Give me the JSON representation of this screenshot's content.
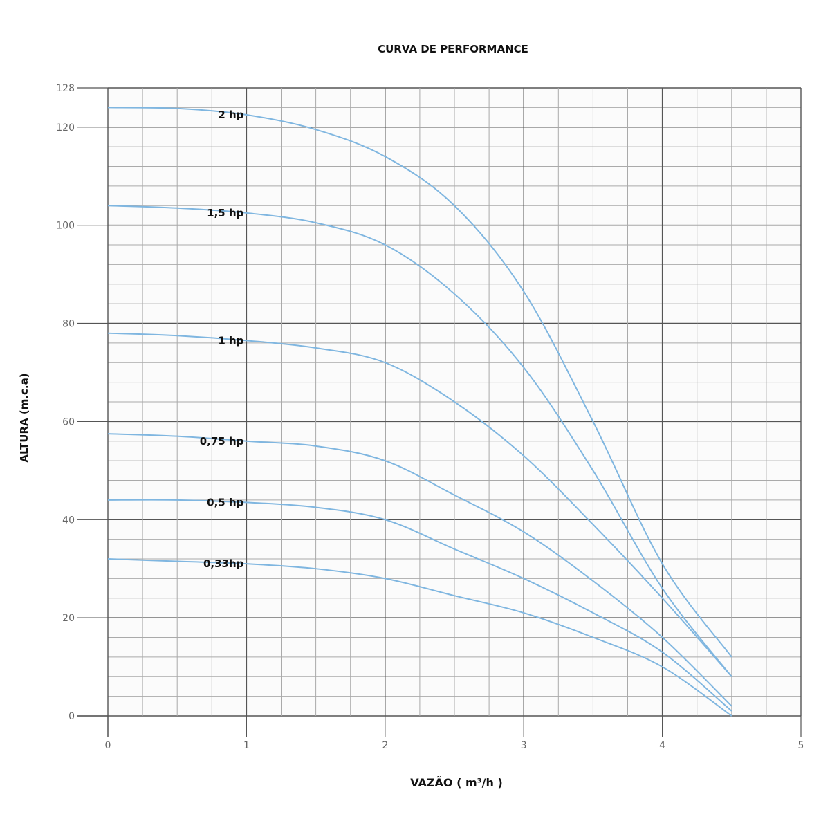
{
  "chart_data": {
    "type": "line",
    "title": "CURVA DE PERFORMANCE",
    "xlabel": "VAZÃO ( m³/h )",
    "ylabel": "ALTURA (m.c.a)",
    "xlim": [
      0,
      5
    ],
    "ylim": [
      0,
      128
    ],
    "xticks": [
      "0",
      "1",
      "2",
      "3",
      "4",
      "5"
    ],
    "yticks": [
      "0",
      "20",
      "40",
      "60",
      "80",
      "100",
      "120",
      "128"
    ],
    "grid": true,
    "line_color": "#7fb6e0",
    "series": [
      {
        "name": "2 hp",
        "x": [
          0,
          0.5,
          1,
          1.5,
          2,
          2.5,
          3,
          3.5,
          4,
          4.5
        ],
        "y": [
          124,
          123.8,
          122.5,
          119.5,
          114,
          104,
          86.5,
          60,
          31,
          12
        ]
      },
      {
        "name": "1,5 hp",
        "x": [
          0,
          0.5,
          1,
          1.5,
          2,
          2.5,
          3,
          3.5,
          4,
          4.5
        ],
        "y": [
          104,
          103.5,
          102.5,
          100.5,
          96,
          86,
          71,
          50,
          26,
          8
        ]
      },
      {
        "name": "1 hp",
        "x": [
          0,
          0.5,
          1,
          1.5,
          2,
          2.5,
          3,
          3.5,
          4,
          4.5
        ],
        "y": [
          78,
          77.5,
          76.5,
          75,
          72,
          64,
          53,
          39,
          24,
          8
        ]
      },
      {
        "name": "0,75 hp",
        "x": [
          0,
          0.5,
          1,
          1.5,
          2,
          2.5,
          3,
          3.5,
          4,
          4.5
        ],
        "y": [
          57.5,
          57,
          56,
          55,
          52,
          45,
          37.5,
          27.5,
          16,
          2
        ]
      },
      {
        "name": "0,5 hp",
        "x": [
          0,
          0.5,
          1,
          1.5,
          2,
          2.5,
          3,
          3.5,
          4,
          4.5
        ],
        "y": [
          44,
          44,
          43.5,
          42.5,
          40,
          34,
          28,
          21,
          13,
          1
        ]
      },
      {
        "name": "0,33hp",
        "x": [
          0,
          0.5,
          1,
          1.5,
          2,
          2.5,
          3,
          3.5,
          4,
          4.5
        ],
        "y": [
          32,
          31.5,
          31,
          30,
          28,
          24.5,
          21,
          16,
          10,
          0
        ]
      }
    ]
  }
}
